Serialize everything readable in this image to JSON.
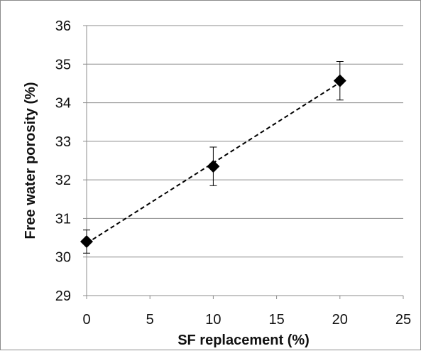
{
  "chart_data": {
    "type": "scatter",
    "title": "",
    "xlabel": "SF replacement (%)",
    "ylabel": "Free water porosity (%)",
    "xlim": [
      0,
      25
    ],
    "ylim": [
      29,
      36
    ],
    "x_ticks": [
      "0",
      "5",
      "10",
      "15",
      "20",
      "25"
    ],
    "y_ticks": [
      "29",
      "30",
      "31",
      "32",
      "33",
      "34",
      "35",
      "36"
    ],
    "grid": "horizontal",
    "marker": "diamond",
    "trendline": "linear, dashed",
    "series": [
      {
        "x": [
          0,
          10,
          20
        ],
        "y": [
          30.4,
          32.35,
          34.57
        ],
        "error": [
          0.3,
          0.5,
          0.5
        ]
      }
    ],
    "colors": {
      "marker": "#000000",
      "grid": "#8c8c8c",
      "axis": "#8c8c8c",
      "trendline": "#000000"
    }
  }
}
